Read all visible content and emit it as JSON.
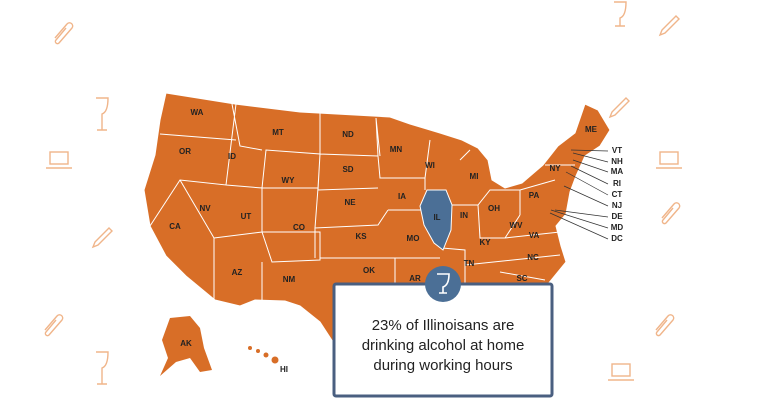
{
  "map": {
    "states": [
      {
        "label": "WA"
      },
      {
        "label": "OR"
      },
      {
        "label": "CA"
      },
      {
        "label": "NV"
      },
      {
        "label": "ID"
      },
      {
        "label": "MT"
      },
      {
        "label": "WY"
      },
      {
        "label": "UT"
      },
      {
        "label": "AZ"
      },
      {
        "label": "NM"
      },
      {
        "label": "CO"
      },
      {
        "label": "ND"
      },
      {
        "label": "SD"
      },
      {
        "label": "NE"
      },
      {
        "label": "KS"
      },
      {
        "label": "OK"
      },
      {
        "label": "MN"
      },
      {
        "label": "IA"
      },
      {
        "label": "MO"
      },
      {
        "label": "AR"
      },
      {
        "label": "WI"
      },
      {
        "label": "IL"
      },
      {
        "label": "MI"
      },
      {
        "label": "IN"
      },
      {
        "label": "OH"
      },
      {
        "label": "KY"
      },
      {
        "label": "TN"
      },
      {
        "label": "SC"
      },
      {
        "label": "NC"
      },
      {
        "label": "VA"
      },
      {
        "label": "WV"
      },
      {
        "label": "PA"
      },
      {
        "label": "NY"
      },
      {
        "label": "ME"
      },
      {
        "label": "VT"
      },
      {
        "label": "NH"
      },
      {
        "label": "MA"
      },
      {
        "label": "RI"
      },
      {
        "label": "CT"
      },
      {
        "label": "NJ"
      },
      {
        "label": "DE"
      },
      {
        "label": "MD"
      },
      {
        "label": "DC"
      },
      {
        "label": "AK"
      },
      {
        "label": "HI"
      }
    ]
  },
  "tooltip": {
    "lines": [
      "23% of Illinoisans are",
      "drinking alcohol at home",
      "during working hours"
    ]
  }
}
